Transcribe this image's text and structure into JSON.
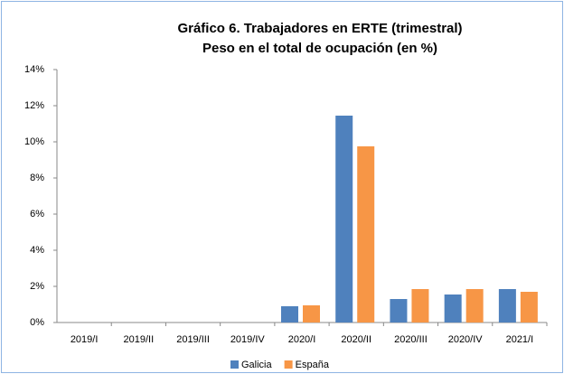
{
  "chart_data": {
    "type": "bar",
    "title": "Gráfico 6. Trabajadores en ERTE (trimestral)",
    "subtitle": "Peso en el total de ocupación (en %)",
    "categories": [
      "2019/I",
      "2019/II",
      "2019/III",
      "2019/IV",
      "2020/I",
      "2020/II",
      "2020/III",
      "2020/IV",
      "2021/I"
    ],
    "series": [
      {
        "name": "Galicia",
        "color": "#4f81bd",
        "values": [
          0,
          0,
          0,
          0,
          0.9,
          11.45,
          1.3,
          1.55,
          1.85
        ]
      },
      {
        "name": "España",
        "color": "#f79646",
        "values": [
          0,
          0,
          0,
          0,
          0.95,
          9.75,
          1.85,
          1.85,
          1.7
        ]
      }
    ],
    "ylim": [
      0,
      14
    ],
    "yticks": [
      {
        "value": 0,
        "label": "0%"
      },
      {
        "value": 2,
        "label": "2%"
      },
      {
        "value": 4,
        "label": "4%"
      },
      {
        "value": 6,
        "label": "6%"
      },
      {
        "value": 8,
        "label": "8%"
      },
      {
        "value": 10,
        "label": "10%"
      },
      {
        "value": 12,
        "label": "12%"
      },
      {
        "value": 14,
        "label": "14%"
      }
    ],
    "legend": "bottom"
  }
}
